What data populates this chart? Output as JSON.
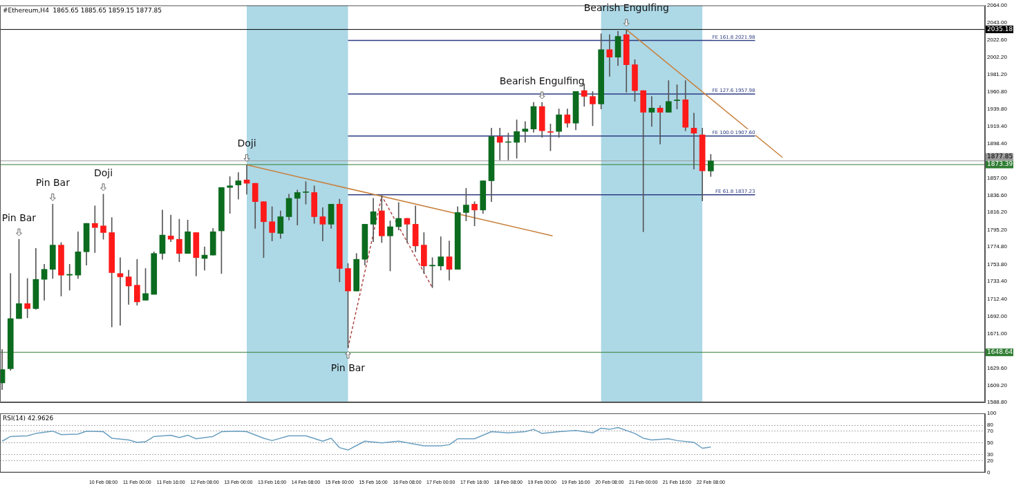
{
  "chart_data": [
    {
      "type": "candlestick",
      "title": "#Ethereum,H4  1865.65 1885.65 1859.15 1877.85",
      "x": [
        "--02-08T08:00",
        "--02-08T12:00",
        "--02-08T16:00",
        "--02-08T20:00",
        "--02-09T00:00",
        "--02-09T04:00",
        "--02-09T08:00",
        "--02-09T12:00",
        "--02-09T16:00",
        "--02-09T20:00",
        "--02-10T00:00",
        "--02-10T04:00",
        "--02-10T08:00",
        "--02-10T12:00",
        "--02-10T16:00",
        "--02-10T20:00",
        "--02-11T00:00",
        "--02-11T04:00",
        "--02-11T08:00",
        "--02-11T12:00",
        "--02-11T16:00",
        "--02-11T20:00",
        "--02-12T00:00",
        "--02-12T04:00",
        "--02-12T08:00",
        "--02-12T12:00",
        "--02-12T16:00",
        "--02-12T20:00",
        "--02-13T00:00",
        "--02-13T04:00",
        "--02-13T08:00",
        "--02-13T12:00",
        "--02-13T16:00",
        "--02-13T20:00",
        "--02-14T00:00",
        "--02-14T04:00",
        "--02-14T08:00",
        "--02-14T12:00",
        "--02-14T16:00",
        "--02-14T20:00",
        "--02-15T00:00",
        "--02-15T04:00",
        "--02-15T08:00",
        "--02-15T12:00",
        "--02-15T16:00",
        "--02-15T20:00",
        "--02-16T00:00",
        "--02-16T04:00",
        "--02-16T08:00",
        "--02-16T12:00",
        "--02-16T16:00",
        "--02-16T20:00",
        "--02-17T00:00",
        "--02-17T04:00",
        "--02-17T08:00",
        "--02-17T12:00",
        "--02-17T16:00",
        "--02-17T20:00",
        "--02-18T00:00",
        "--02-18T04:00",
        "--02-18T08:00",
        "--02-18T12:00",
        "--02-18T16:00",
        "--02-18T20:00",
        "--02-19T00:00",
        "--02-19T04:00",
        "--02-19T08:00",
        "--02-19T12:00",
        "--02-19T16:00",
        "--02-19T20:00",
        "--02-20T00:00",
        "--02-20T04:00",
        "--02-20T08:00",
        "--02-20T12:00",
        "--02-20T16:00",
        "--02-20T20:00",
        "--02-21T00:00",
        "--02-21T04:00",
        "--02-21T08:00",
        "--02-21T12:00",
        "--02-21T16:00",
        "--02-21T20:00",
        "--02-22T00:00",
        "--02-22T04:00",
        "--02-22T08:00"
      ],
      "ohlc": [
        [
          1612,
          1652,
          1604,
          1628
        ],
        [
          1629,
          1743,
          1627,
          1689
        ],
        [
          1689,
          1784,
          1689,
          1707
        ],
        [
          1707,
          1737,
          1690,
          1701
        ],
        [
          1701,
          1773,
          1700,
          1736
        ],
        [
          1736,
          1754,
          1711,
          1748
        ],
        [
          1748,
          1826,
          1737,
          1777
        ],
        [
          1777,
          1780,
          1716,
          1741
        ],
        [
          1741,
          1754,
          1723,
          1742
        ],
        [
          1741,
          1793,
          1737,
          1769
        ],
        [
          1769,
          1803,
          1753,
          1803
        ],
        [
          1803,
          1824,
          1768,
          1798
        ],
        [
          1800,
          1838,
          1784,
          1792
        ],
        [
          1792,
          1810,
          1679,
          1744
        ],
        [
          1743,
          1762,
          1681,
          1739
        ],
        [
          1739,
          1747,
          1706,
          1728
        ],
        [
          1729,
          1760,
          1705,
          1709
        ],
        [
          1711,
          1749,
          1711,
          1719
        ],
        [
          1718,
          1769,
          1718,
          1767
        ],
        [
          1767,
          1819,
          1760,
          1789
        ],
        [
          1788,
          1813,
          1781,
          1784
        ],
        [
          1784,
          1808,
          1757,
          1767
        ],
        [
          1767,
          1807,
          1767,
          1793
        ],
        [
          1792,
          1792,
          1740,
          1762
        ],
        [
          1761,
          1775,
          1747,
          1765
        ],
        [
          1765,
          1797,
          1765,
          1793
        ],
        [
          1794,
          1846,
          1743,
          1846
        ],
        [
          1846,
          1859,
          1815,
          1848
        ],
        [
          1849,
          1864,
          1832,
          1854
        ],
        [
          1855,
          1873,
          1838,
          1851
        ],
        [
          1851,
          1851,
          1797,
          1829
        ],
        [
          1829,
          1829,
          1762,
          1805
        ],
        [
          1805,
          1823,
          1782,
          1792
        ],
        [
          1791,
          1818,
          1785,
          1811
        ],
        [
          1811,
          1838,
          1807,
          1833
        ],
        [
          1833,
          1843,
          1801,
          1840
        ],
        [
          1840,
          1853,
          1826,
          1840
        ],
        [
          1840,
          1848,
          1803,
          1811
        ],
        [
          1811,
          1822,
          1782,
          1802
        ],
        [
          1802,
          1826,
          1797,
          1826
        ],
        [
          1826,
          1832,
          1733,
          1749
        ],
        [
          1749,
          1755,
          1654,
          1722
        ],
        [
          1722,
          1767,
          1722,
          1760
        ],
        [
          1760,
          1802,
          1753,
          1802
        ],
        [
          1802,
          1833,
          1781,
          1817
        ],
        [
          1818,
          1836,
          1780,
          1788
        ],
        [
          1788,
          1806,
          1746,
          1799
        ],
        [
          1799,
          1828,
          1795,
          1809
        ],
        [
          1809,
          1809,
          1780,
          1802
        ],
        [
          1802,
          1824,
          1769,
          1776
        ],
        [
          1777,
          1792,
          1743,
          1752
        ],
        [
          1752,
          1762,
          1726,
          1753
        ],
        [
          1752,
          1787,
          1747,
          1763
        ],
        [
          1763,
          1782,
          1735,
          1748
        ],
        [
          1748,
          1823,
          1748,
          1816
        ],
        [
          1816,
          1845,
          1806,
          1825
        ],
        [
          1826,
          1829,
          1800,
          1819
        ],
        [
          1819,
          1854,
          1815,
          1854
        ],
        [
          1854,
          1917,
          1829,
          1907
        ],
        [
          1907,
          1917,
          1879,
          1900
        ],
        [
          1900,
          1911,
          1879,
          1900
        ],
        [
          1900,
          1927,
          1881,
          1913
        ],
        [
          1913,
          1925,
          1900,
          1916
        ],
        [
          1916,
          1948,
          1912,
          1943
        ],
        [
          1943,
          1948,
          1906,
          1914
        ],
        [
          1913,
          1922,
          1890,
          1912
        ],
        [
          1913,
          1940,
          1906,
          1933
        ],
        [
          1933,
          1940,
          1918,
          1923
        ],
        [
          1923,
          1961,
          1915,
          1961
        ],
        [
          1962,
          1970,
          1943,
          1955
        ],
        [
          1955,
          1961,
          1920,
          1946
        ],
        [
          1946,
          2030,
          1940,
          2011
        ],
        [
          2011,
          2029,
          1979,
          2002
        ],
        [
          2002,
          2033,
          1992,
          2027
        ],
        [
          2029,
          2035,
          1960,
          1993
        ],
        [
          1993,
          1999,
          1949,
          1962
        ],
        [
          1962,
          1962,
          1793,
          1936
        ],
        [
          1936,
          1955,
          1919,
          1941
        ],
        [
          1941,
          1944,
          1898,
          1936
        ],
        [
          1936,
          1974,
          1936,
          1949
        ],
        [
          1950,
          1969,
          1940,
          1950
        ],
        [
          1951,
          1974,
          1914,
          1918
        ],
        [
          1917,
          1935,
          1868,
          1911
        ],
        [
          1909,
          1917,
          1830,
          1866
        ],
        [
          1865.65,
          1885.65,
          1859.15,
          1877.85
        ]
      ],
      "colors": [
        "#0b6b1e",
        "#0b6b1e",
        "#0b6b1e",
        "#ff1a1a",
        "#0b6b1e",
        "#0b6b1e",
        "#0b6b1e",
        "#ff1a1a",
        "#0b6b1e",
        "#0b6b1e",
        "#0b6b1e",
        "#ff1a1a",
        "#ff1a1a",
        "#ff1a1a",
        "#ff1a1a",
        "#ff1a1a",
        "#ff1a1a",
        "#0b6b1e",
        "#0b6b1e",
        "#0b6b1e",
        "#ff1a1a",
        "#ff1a1a",
        "#0b6b1e",
        "#ff1a1a",
        "#0b6b1e",
        "#0b6b1e",
        "#0b6b1e",
        "#0b6b1e",
        "#0b6b1e",
        "#ff1a1a",
        "#ff1a1a",
        "#ff1a1a",
        "#ff1a1a",
        "#0b6b1e",
        "#0b6b1e",
        "#0b6b1e",
        "#0b6b1e",
        "#ff1a1a",
        "#ff1a1a",
        "#0b6b1e",
        "#ff1a1a",
        "#ff1a1a",
        "#0b6b1e",
        "#0b6b1e",
        "#0b6b1e",
        "#ff1a1a",
        "#0b6b1e",
        "#0b6b1e",
        "#ff1a1a",
        "#ff1a1a",
        "#ff1a1a",
        "#0b6b1e",
        "#0b6b1e",
        "#ff1a1a",
        "#0b6b1e",
        "#0b6b1e",
        "#ff1a1a",
        "#0b6b1e",
        "#0b6b1e",
        "#ff1a1a",
        "#0b6b1e",
        "#0b6b1e",
        "#0b6b1e",
        "#0b6b1e",
        "#ff1a1a",
        "#ff1a1a",
        "#0b6b1e",
        "#ff1a1a",
        "#0b6b1e",
        "#ff1a1a",
        "#ff1a1a",
        "#0b6b1e",
        "#ff1a1a",
        "#0b6b1e",
        "#ff1a1a",
        "#ff1a1a",
        "#ff1a1a",
        "#0b6b1e",
        "#ff1a1a",
        "#0b6b1e",
        "#0b6b1e",
        "#ff1a1a",
        "#ff1a1a",
        "#ff1a1a",
        "#0b6b1e"
      ],
      "series": [
        {
          "type": "line",
          "color": "#c8803c",
          "x": [
            "--02-13T04:00",
            "--02-19T05:00"
          ],
          "values": [
            1873,
            1788
          ]
        },
        {
          "type": "line",
          "color": "#c8803c",
          "x": [
            "--02-20T16:00",
            "--02-23T18:00"
          ],
          "values": [
            2035,
            1882
          ]
        },
        {
          "type": "line",
          "color": "#2b3a80",
          "x": [
            "--02-15T04:00",
            "--02-23T05:00"
          ],
          "values": [
            2021.98,
            2021.98
          ]
        },
        {
          "type": "line",
          "color": "#2b3a80",
          "x": [
            "--02-15T04:00",
            "--02-23T05:00"
          ],
          "values": [
            1957.98,
            1957.98
          ]
        },
        {
          "type": "line",
          "color": "#2b3a80",
          "x": [
            "--02-15T04:00",
            "--02-23T05:00"
          ],
          "values": [
            1907.6,
            1907.6
          ]
        },
        {
          "type": "line",
          "color": "#2b3a80",
          "x": [
            "--02-15T04:00",
            "--02-23T05:00"
          ],
          "values": [
            1837.23,
            1837.23
          ]
        },
        {
          "type": "line",
          "color": "#b04848",
          "line_style": "dashed",
          "x": [
            "--02-15T04:00",
            "--02-15T20:00",
            "--02-16T20:00"
          ],
          "values": [
            1654,
            1836,
            1726
          ]
        }
      ],
      "xlim": [
        "--02-08T07:00",
        "--02-27T18:00"
      ],
      "ylim": [
        1588.8,
        2064
      ],
      "yticks": [
        {
          "value": 2064,
          "label": "2064.00"
        },
        {
          "value": 2043,
          "label": "2043.00"
        },
        {
          "value": 2022.6,
          "label": "2022.60"
        },
        {
          "value": 2002.2,
          "label": "2002.20"
        },
        {
          "value": 1981.2,
          "label": "1981.20"
        },
        {
          "value": 1960.8,
          "label": "1960.80"
        },
        {
          "value": 1939.8,
          "label": "1939.80"
        },
        {
          "value": 1919.4,
          "label": "1919.40"
        },
        {
          "value": 1898.4,
          "label": "1898.40"
        },
        {
          "value": 1857,
          "label": "1857.00"
        },
        {
          "value": 1836.6,
          "label": "1836.60"
        },
        {
          "value": 1816.2,
          "label": "1816.20"
        },
        {
          "value": 1795.2,
          "label": "1795.20"
        },
        {
          "value": 1774.8,
          "label": "1774.80"
        },
        {
          "value": 1753.8,
          "label": "1753.80"
        },
        {
          "value": 1733.4,
          "label": "1733.40"
        },
        {
          "value": 1712.4,
          "label": "1712.40"
        },
        {
          "value": 1692,
          "label": "1692.00"
        },
        {
          "value": 1671,
          "label": "1671.00"
        },
        {
          "value": 1629.6,
          "label": "1629.60"
        },
        {
          "value": 1609.2,
          "label": "1609.20"
        },
        {
          "value": 1588.8,
          "label": "1588.80"
        }
      ],
      "tick_labels": "y",
      "ref_lines": [
        {
          "axis": "y",
          "value": 2035.18,
          "label": "2035.18",
          "color": "#000000"
        },
        {
          "axis": "y",
          "value": 1877.85,
          "label": "1877.85",
          "color": "#9a9a9a"
        },
        {
          "axis": "y",
          "value": 1873.39,
          "label": "1873.39",
          "color": "#2e7d32"
        },
        {
          "axis": "y",
          "value": 1648.64,
          "label": "1648.64",
          "color": "#2e7d32"
        }
      ],
      "bands": [
        {
          "axis": "x",
          "from": "--02-13T04:00",
          "to": "--02-15T04:00",
          "color": "#add8e6"
        },
        {
          "axis": "x",
          "from": "--02-20T04:00",
          "to": "--02-22T04:00",
          "color": "#add8e6"
        }
      ],
      "annotations": [
        {
          "text": "Pin Bar",
          "x": "--02-08T16:00",
          "y": 1784
        },
        {
          "text": "Pin Bar",
          "x": "--02-09T08:00",
          "y": 1826
        },
        {
          "text": "Doji",
          "x": "--02-10T08:00",
          "y": 1838
        },
        {
          "text": "Doji",
          "x": "--02-13T04:00",
          "y": 1873
        },
        {
          "text": "Pin Bar",
          "x": "--02-15T04:00",
          "y": 1654
        },
        {
          "text": "Bearish Engulfing",
          "x": "--02-19T00:00",
          "y": 1948
        },
        {
          "text": "Bearish Engulfing",
          "x": "--02-20T16:00",
          "y": 2035
        },
        {
          "text": "FE 161.8 2021.98",
          "x": "--02-23T05:00",
          "y": 2021.98
        },
        {
          "text": "FE 127.6 1957.98",
          "x": "--02-23T05:00",
          "y": 1957.98
        },
        {
          "text": "FE 100.0 1907.60",
          "x": "--02-23T05:00",
          "y": 1907.6
        },
        {
          "text": "FE 61.8 1837.23",
          "x": "--02-23T05:00",
          "y": 1837.23
        }
      ]
    },
    {
      "type": "line",
      "title": "RSI(14) 42.9626",
      "series": [
        {
          "color": "#6a9fc0",
          "x": [
            "--02-08T08:00",
            "--02-08T12:00",
            "--02-08T20:00",
            "--02-09T00:00",
            "--02-09T08:00",
            "--02-09T12:00",
            "--02-09T20:00",
            "--02-10T00:00",
            "--02-10T08:00",
            "--02-10T12:00",
            "--02-10T20:00",
            "--02-11T00:00",
            "--02-11T04:00",
            "--02-11T08:00",
            "--02-11T16:00",
            "--02-11T20:00",
            "--02-12T00:00",
            "--02-12T04:00",
            "--02-12T12:00",
            "--02-12T16:00",
            "--02-13T00:00",
            "--02-13T04:00",
            "--02-13T12:00",
            "--02-13T16:00",
            "--02-14T00:00",
            "--02-14T08:00",
            "--02-14T16:00",
            "--02-14T20:00",
            "--02-15T00:00",
            "--02-15T04:00",
            "--02-15T12:00",
            "--02-15T20:00",
            "--02-16T04:00",
            "--02-16T16:00",
            "--02-17T00:00",
            "--02-17T04:00",
            "--02-17T08:00",
            "--02-17T16:00",
            "--02-18T00:00",
            "--02-18T08:00",
            "--02-18T16:00",
            "--02-18T20:00",
            "--02-19T00:00",
            "--02-19T08:00",
            "--02-19T16:00",
            "--02-20T00:00",
            "--02-20T04:00",
            "--02-20T08:00",
            "--02-20T12:00",
            "--02-20T20:00",
            "--02-21T00:00",
            "--02-21T04:00",
            "--02-21T12:00",
            "--02-21T16:00",
            "--02-22T00:00",
            "--02-22T04:00",
            "--02-22T08:00"
          ],
          "values": [
            53,
            61,
            62,
            66,
            70,
            64,
            65,
            70,
            69,
            58,
            55,
            51,
            52,
            61,
            63,
            59,
            63,
            57,
            61,
            69,
            70,
            69,
            58,
            54,
            62,
            62,
            53,
            58,
            42,
            38,
            53,
            50,
            53,
            45,
            45,
            47,
            57,
            57,
            69,
            67,
            69,
            73,
            66,
            69,
            71,
            67,
            75,
            73,
            76,
            66,
            58,
            55,
            57,
            54,
            51,
            41,
            43
          ]
        }
      ],
      "xlim": [
        "--02-08T07:00",
        "--02-27T18:00"
      ],
      "xticks": [
        {
          "value": "--02-10T08:00",
          "label": "10 Feb 08:00"
        },
        {
          "value": "--02-11T00:00",
          "label": "11 Feb 00:00"
        },
        {
          "value": "--02-11T16:00",
          "label": "11 Feb 16:00"
        },
        {
          "value": "--02-12T08:00",
          "label": "12 Feb 08:00"
        },
        {
          "value": "--02-13T00:00",
          "label": "13 Feb 00:00"
        },
        {
          "value": "--02-13T16:00",
          "label": "13 Feb 16:00"
        },
        {
          "value": "--02-14T08:00",
          "label": "14 Feb 08:00"
        },
        {
          "value": "--02-15T00:00",
          "label": "15 Feb 00:00"
        },
        {
          "value": "--02-15T16:00",
          "label": "15 Feb 16:00"
        },
        {
          "value": "--02-16T08:00",
          "label": "16 Feb 08:00"
        },
        {
          "value": "--02-17T00:00",
          "label": "17 Feb 00:00"
        },
        {
          "value": "--02-17T16:00",
          "label": "17 Feb 16:00"
        },
        {
          "value": "--02-18T08:00",
          "label": "18 Feb 08:00"
        },
        {
          "value": "--02-19T00:00",
          "label": "19 Feb 00:00"
        },
        {
          "value": "--02-19T16:00",
          "label": "19 Feb 16:00"
        },
        {
          "value": "--02-20T08:00",
          "label": "20 Feb 08:00"
        },
        {
          "value": "--02-21T00:00",
          "label": "21 Feb 00:00"
        },
        {
          "value": "--02-21T16:00",
          "label": "21 Feb 16:00"
        },
        {
          "value": "--02-22T08:00",
          "label": "22 Feb 08:00"
        }
      ],
      "ylim": [
        0,
        100
      ],
      "yticks": [
        0,
        20,
        30,
        50,
        70,
        80,
        100
      ],
      "grid": "y"
    }
  ]
}
